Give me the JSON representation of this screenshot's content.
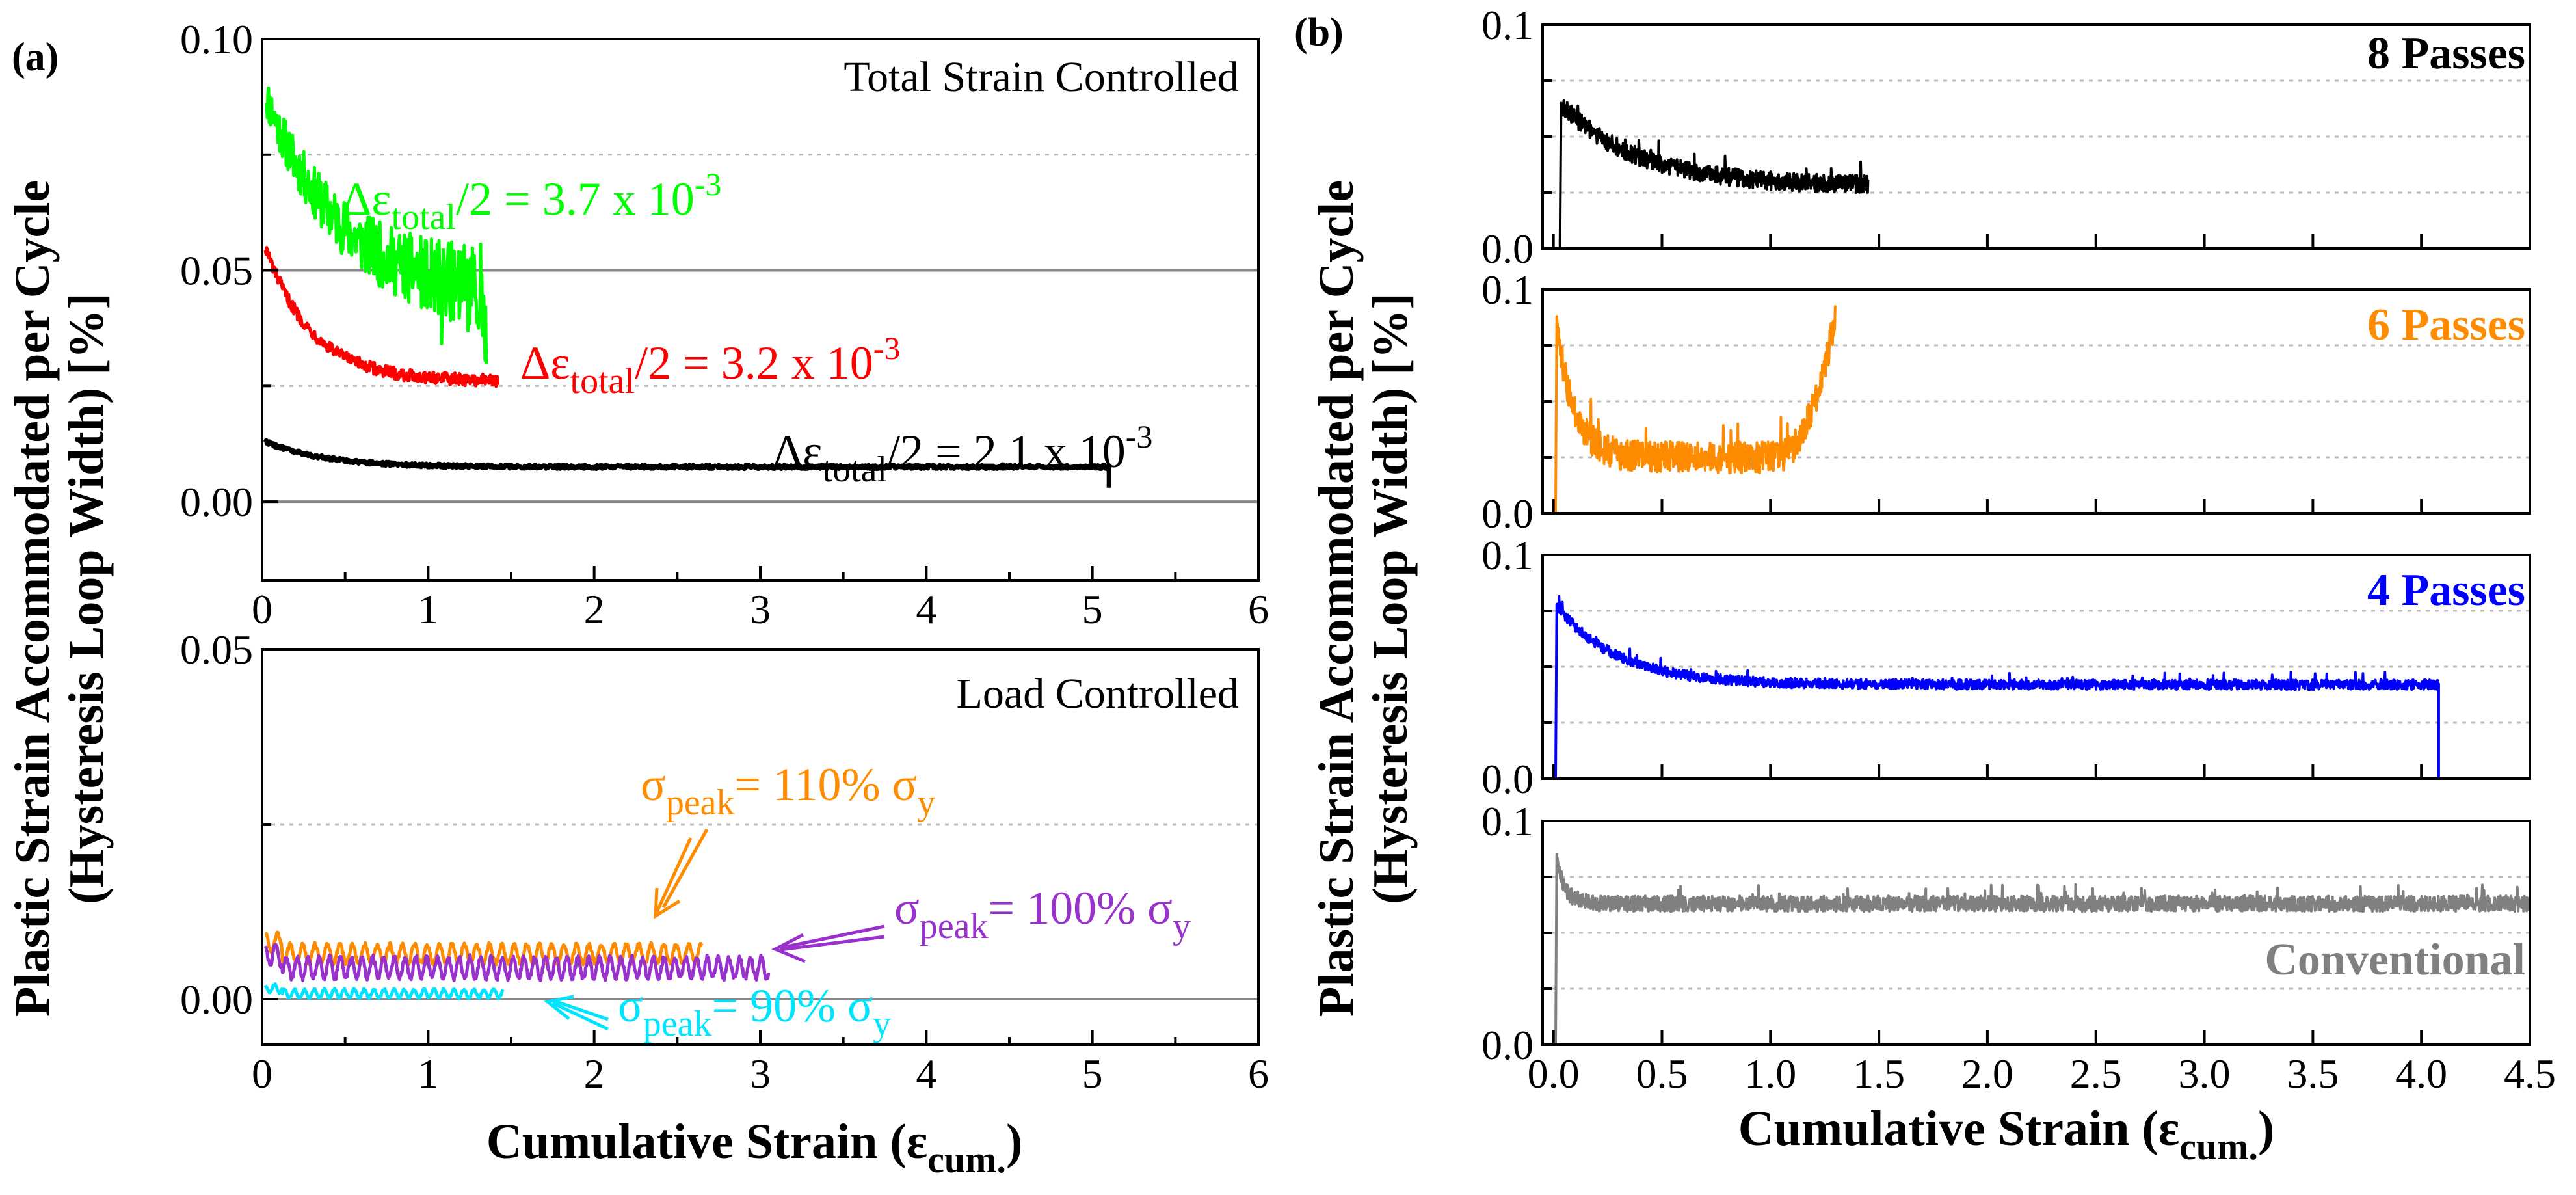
{
  "figure": {
    "shared_ylabel_line1": "Plastic Strain Accommodated per Cycle",
    "shared_ylabel_line2": "(Hysteresis Loop Width) [%]"
  },
  "chart_data": [
    {
      "id": "a_top",
      "panel": "(a)",
      "type": "line",
      "mode_label": "Total Strain Controlled",
      "xlim": [
        0,
        6
      ],
      "ylim": [
        -0.017,
        0.1
      ],
      "xticks": [
        "0",
        "1",
        "2",
        "3",
        "4",
        "5",
        "6"
      ],
      "yticks": [
        "0.00",
        "0.05",
        "0.10"
      ],
      "ytick_values": [
        0,
        0.05,
        0.1
      ],
      "grid": {
        "solid_y": [
          0,
          0.05
        ],
        "dotted_y": [
          0.025,
          0.075
        ]
      },
      "series": [
        {
          "name": "Δε_total/2 = 3.7 x 10^-3",
          "color": "#00ff00",
          "x_end": 1.35,
          "start": 0.088,
          "steady": 0.044,
          "decay": 0.45,
          "noise": 0.0045,
          "end_spike": 0.044,
          "annotation": {
            "base": "Δε",
            "sub": "total",
            "rest": "/2 = 3.7 x 10",
            "sup": "-3"
          }
        },
        {
          "name": "Δε_total/2 = 3.2 x 10^-3",
          "color": "#ff0000",
          "x_end": 1.42,
          "start": 0.055,
          "steady": 0.026,
          "decay": 0.28,
          "noise": 0.0013,
          "end_spike": 0.031,
          "annotation": {
            "base": "Δε",
            "sub": "total",
            "rest": "/2 = 3.2 x 10",
            "sup": "-3"
          }
        },
        {
          "name": "Δε_total/2 = 2.1 x 10^-3",
          "color": "#000000",
          "x_end": 5.1,
          "start": 0.013,
          "steady": 0.0075,
          "decay": 0.35,
          "noise": 0.0004,
          "end_spike": 0.01,
          "annotation": {
            "base": "Δε",
            "sub": "total",
            "rest": "/2 = 2.1 x 10",
            "sup": "-3"
          }
        }
      ]
    },
    {
      "id": "a_bottom",
      "type": "line",
      "mode_label": "Load Controlled",
      "xlabel_base": "Cumulative Strain (ε",
      "xlabel_sub": "cum.",
      "xlabel_close": ")",
      "xlim": [
        0,
        6
      ],
      "ylim": [
        -0.0065,
        0.05
      ],
      "xticks": [
        "0",
        "1",
        "2",
        "3",
        "4",
        "5",
        "6"
      ],
      "yticks": [
        "0.00",
        "0.05"
      ],
      "ytick_values": [
        0,
        0.05
      ],
      "grid": {
        "solid_y": [
          0
        ],
        "dotted_y": [
          0.025
        ]
      },
      "series": [
        {
          "name": "σ_peak = 110% σ_y",
          "color": "#ff8c00",
          "x_end": 2.65,
          "base": 0.0065,
          "amp": 0.0013,
          "period": 0.075,
          "annotation": {
            "base": "σ",
            "sub": "peak",
            "rest": "= 110% σ",
            "sub2": "y"
          }
        },
        {
          "name": "σ_peak = 100% σ_y",
          "color": "#9932cc",
          "x_end": 3.05,
          "base": 0.0045,
          "amp": 0.0015,
          "period": 0.065,
          "annotation": {
            "base": "σ",
            "sub": "peak",
            "rest": "= 100% σ",
            "sub2": "y"
          }
        },
        {
          "name": "σ_peak = 90% σ_y",
          "color": "#00e5ff",
          "x_end": 1.45,
          "base": 0.0008,
          "amp": 0.0006,
          "period": 0.06,
          "annotation": {
            "base": "σ",
            "sub": "peak",
            "rest": "= 90% σ",
            "sub2": "y"
          }
        }
      ]
    },
    {
      "id": "b_8",
      "panel": "(b)",
      "type": "line",
      "label": "8 Passes",
      "label_color": "#000000",
      "xlim": [
        -0.05,
        4.5
      ],
      "ylim": [
        0,
        0.1
      ],
      "yticks": [
        "0.0",
        "0.1"
      ],
      "ytick_values": [
        0,
        0.1
      ],
      "series": [
        {
          "name": "8 Passes",
          "color": "#000000",
          "x_start": 0.03,
          "x_end": 1.45,
          "peak": 0.065,
          "steady": 0.028,
          "decay": 0.35,
          "noise": 0.004,
          "end_drop": false
        }
      ]
    },
    {
      "id": "b_6",
      "type": "line",
      "label": "6 Passes",
      "label_color": "#ff8c00",
      "xlim": [
        -0.05,
        4.5
      ],
      "ylim": [
        0,
        0.1
      ],
      "yticks": [
        "0.0",
        "0.1"
      ],
      "ytick_values": [
        0,
        0.1
      ],
      "series": [
        {
          "name": "6 Passes",
          "color": "#ff8c00",
          "x_start": 0.01,
          "x_end": 1.3,
          "peak": 0.088,
          "steady": 0.025,
          "decay": 0.08,
          "noise": 0.007,
          "end_rise": 0.088
        }
      ]
    },
    {
      "id": "b_4",
      "type": "line",
      "label": "4 Passes",
      "label_color": "#0000ff",
      "xlim": [
        -0.05,
        4.5
      ],
      "ylim": [
        0,
        0.1
      ],
      "yticks": [
        "0.0",
        "0.1"
      ],
      "ytick_values": [
        0,
        0.1
      ],
      "series": [
        {
          "name": "4 Passes",
          "color": "#0000ff",
          "x_start": 0.01,
          "x_end": 4.08,
          "peak": 0.078,
          "steady": 0.042,
          "decay": 0.28,
          "noise": 0.0022,
          "end_drop": true
        }
      ]
    },
    {
      "id": "b_conv",
      "type": "line",
      "label": "Conventional",
      "label_color": "#808080",
      "xlabel_base": "Cumulative Strain (ε",
      "xlabel_sub": "cum.",
      "xlabel_close": ")",
      "xlim": [
        -0.05,
        4.5
      ],
      "ylim": [
        0,
        0.1
      ],
      "xticks": [
        "0.0",
        "0.5",
        "1.0",
        "1.5",
        "2.0",
        "2.5",
        "3.0",
        "3.5",
        "4.0",
        "4.5"
      ],
      "xtick_values": [
        0,
        0.5,
        1.0,
        1.5,
        2.0,
        2.5,
        3.0,
        3.5,
        4.0,
        4.5
      ],
      "yticks": [
        "0.0",
        "0.1"
      ],
      "ytick_values": [
        0,
        0.1
      ],
      "series": [
        {
          "name": "Conventional",
          "color": "#808080",
          "x_start": 0.01,
          "x_end": 4.5,
          "peak": 0.085,
          "steady": 0.063,
          "decay": 0.04,
          "noise": 0.0035,
          "end_drop": false
        }
      ]
    }
  ]
}
